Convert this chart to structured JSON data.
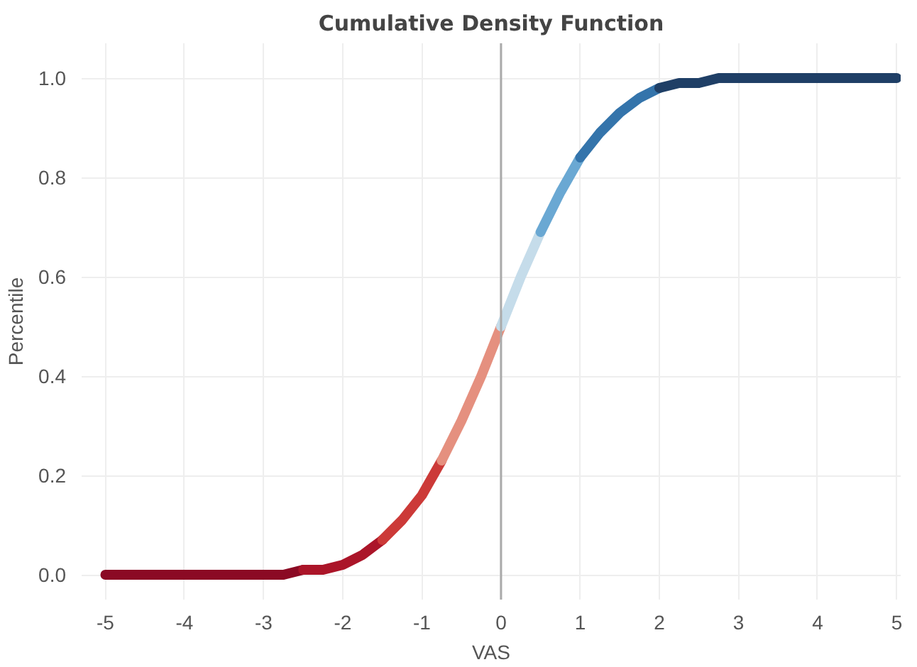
{
  "chart_data": {
    "type": "line",
    "title": "Cumulative Density Function",
    "xlabel": "VAS",
    "ylabel": "Percentile",
    "series": [
      {
        "color": "#8b0a24",
        "x": [
          -5,
          -4.5,
          -4,
          -3.5,
          -3,
          -2.75,
          -2.5
        ],
        "values": [
          0,
          0,
          0,
          0,
          0,
          0,
          0.01
        ]
      },
      {
        "color": "#ab1529",
        "x": [
          -2.5,
          -2.25,
          -2,
          -1.75,
          -1.5
        ],
        "values": [
          0.01,
          0.01,
          0.02,
          0.04,
          0.07
        ]
      },
      {
        "color": "#cc3a38",
        "x": [
          -1.5,
          -1.25,
          -1,
          -0.75
        ],
        "values": [
          0.07,
          0.11,
          0.16,
          0.23
        ]
      },
      {
        "color": "#e5907f",
        "x": [
          -0.75,
          -0.5,
          -0.25,
          0
        ],
        "values": [
          0.23,
          0.31,
          0.4,
          0.5
        ]
      },
      {
        "color": "#c5dcea",
        "x": [
          0,
          0.25,
          0.5
        ],
        "values": [
          0.5,
          0.6,
          0.69
        ]
      },
      {
        "color": "#6aa8d3",
        "x": [
          0.5,
          0.75,
          1
        ],
        "values": [
          0.69,
          0.77,
          0.84
        ]
      },
      {
        "color": "#3474ab",
        "x": [
          1,
          1.25,
          1.5,
          1.75,
          2
        ],
        "values": [
          0.84,
          0.89,
          0.93,
          0.96,
          0.98
        ]
      },
      {
        "color": "#1f3f66",
        "x": [
          2,
          2.25,
          2.5,
          2.75,
          3,
          3.5,
          4,
          4.5,
          5
        ],
        "values": [
          0.98,
          0.99,
          0.99,
          1,
          1,
          1,
          1,
          1,
          1
        ]
      }
    ],
    "xlim": [
      -5.3,
      5.05
    ],
    "ylim": [
      -0.05,
      1.07
    ],
    "xticks": [
      -5,
      -4,
      -3,
      -2,
      -1,
      0,
      1,
      2,
      3,
      4,
      5
    ],
    "yticks": [
      {
        "value": 0,
        "label": "0.0"
      },
      {
        "value": 0.2,
        "label": "0.2"
      },
      {
        "value": 0.4,
        "label": "0.4"
      },
      {
        "value": 0.6,
        "label": "0.6"
      },
      {
        "value": 0.8,
        "label": "0.8"
      },
      {
        "value": 1,
        "label": "1.0"
      }
    ],
    "grid": true,
    "marker": "none",
    "line_style": "solid",
    "ref_lines": [
      {
        "axis": "x",
        "value": 0,
        "color": "#aaaaaa"
      }
    ]
  }
}
